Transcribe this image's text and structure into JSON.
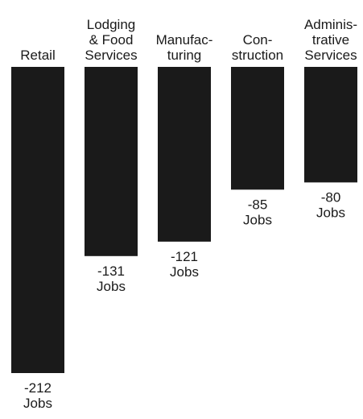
{
  "chart_data": {
    "type": "bar",
    "orientation": "vertical-negative",
    "categories": [
      [
        "Retail"
      ],
      [
        "Lodging",
        "& Food",
        "Services"
      ],
      [
        "Manufac-",
        "turing"
      ],
      [
        "Con-",
        "struction"
      ],
      [
        "Adminis-",
        "trative",
        "Services"
      ]
    ],
    "values": [
      -212,
      -131,
      -121,
      -85,
      -80
    ],
    "value_labels": [
      [
        "-212",
        "Jobs"
      ],
      [
        "-131",
        "Jobs"
      ],
      [
        "-121",
        "Jobs"
      ],
      [
        "-85",
        "Jobs"
      ],
      [
        "-80",
        "Jobs"
      ]
    ],
    "ylim": [
      -212,
      0
    ],
    "grid": false,
    "title": "",
    "xlabel": "",
    "ylabel": ""
  },
  "colors": {
    "bar": "#1a1a1a",
    "text": "#1a1a1a",
    "background": "#ffffff"
  }
}
